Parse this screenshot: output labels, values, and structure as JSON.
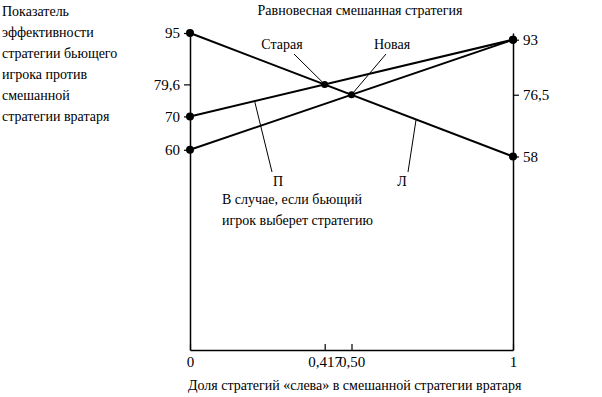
{
  "chart_data": {
    "type": "line",
    "y_label": [
      "Показатель",
      "эффективности",
      "стратегии бьющего",
      "игрока против",
      "смешанной",
      "стратегии вратаря"
    ],
    "x_label": "Доля стратегий «слева» в смешанной стратегии вратаря",
    "x": [
      0,
      1
    ],
    "series": [
      {
        "name": "Л",
        "color": "#000000",
        "marker": "circle",
        "values": [
          95,
          58
        ]
      },
      {
        "name": "П",
        "color": "#000000",
        "marker": "circle",
        "values": [
          70,
          93
        ]
      },
      {
        "color": "#000000",
        "marker": "circle",
        "values": [
          60,
          93
        ]
      }
    ],
    "xlim": [
      0,
      1
    ],
    "xticks": [
      0,
      {
        "value": 0.417,
        "label": "0,417"
      },
      {
        "value": 0.5,
        "label": "0,50"
      },
      1
    ],
    "ylim": [
      0,
      95
    ],
    "yticks": [
      95,
      {
        "value": 79.6,
        "label": "79,6"
      },
      70,
      60
    ],
    "y2lim": [
      0,
      95
    ],
    "y2ticks": [
      93,
      {
        "value": 76.5,
        "label": "76,5"
      },
      58
    ],
    "equilibrium": {
      "title": "Равновесная смешанная стратегия",
      "points": [
        {
          "label": "Старая",
          "x": 0.417,
          "y": 79.6
        },
        {
          "label": "Новая",
          "x": 0.5,
          "y": 76.5
        }
      ]
    },
    "series_note": [
      "В случае, если бьющий",
      "игрок выберет стратегию"
    ],
    "grid": false
  }
}
